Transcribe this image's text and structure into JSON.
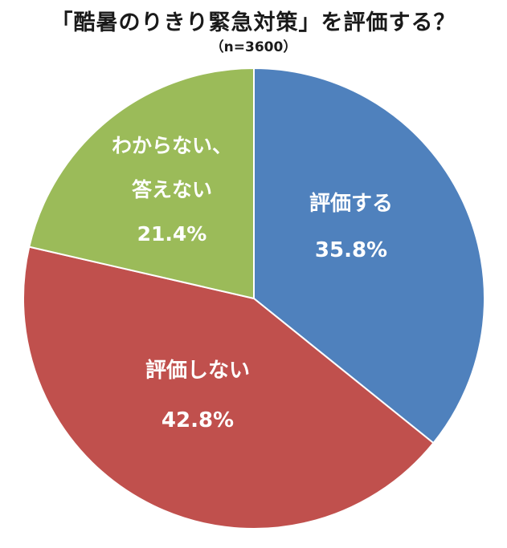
{
  "title": "「酷暑のりきり緊急対策」を評価する？",
  "subtitle": "（n=3600）",
  "colors": {
    "series_0": "#4f81bd",
    "series_1": "#c0504d",
    "series_2": "#9bbb59",
    "separator": "#ffffff",
    "label_text": "#ffffff"
  },
  "chart_data": {
    "type": "pie",
    "title": "「酷暑のりきり緊急対策」を評価する？",
    "subtitle": "（n=3600）",
    "n": 3600,
    "start_angle_deg": 0,
    "direction": "clockwise",
    "slices": [
      {
        "label_lines": [
          "評価する"
        ],
        "value": 35.8,
        "value_label": "35.8%",
        "color": "#4f81bd"
      },
      {
        "label_lines": [
          "評価しない"
        ],
        "value": 42.8,
        "value_label": "42.8%",
        "color": "#c0504d"
      },
      {
        "label_lines": [
          "わからない、",
          "答えない"
        ],
        "value": 21.4,
        "value_label": "21.4%",
        "color": "#9bbb59"
      }
    ]
  }
}
